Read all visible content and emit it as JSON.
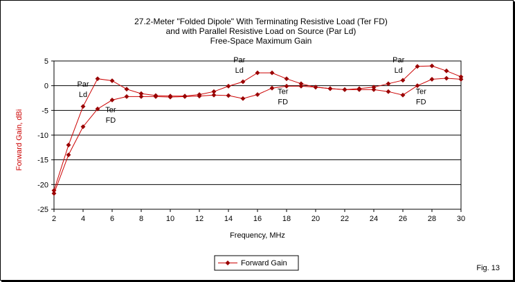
{
  "chart_data": {
    "type": "line",
    "title_lines": [
      "27.2-Meter \"Folded Dipole\" With Terminating Resistive Load (Ter FD)",
      "and with Parallel Resistive Load on Source (Par Ld)",
      "Free-Space Maximum Gain"
    ],
    "xlabel": "Frequency, MHz",
    "ylabel": "Forward Gain, dBi",
    "xlim": [
      2,
      30
    ],
    "ylim": [
      -25,
      5
    ],
    "xticks": [
      2,
      4,
      6,
      8,
      10,
      12,
      14,
      16,
      18,
      20,
      22,
      24,
      26,
      28,
      30
    ],
    "yticks": [
      5,
      0,
      -5,
      -10,
      -15,
      -20,
      -25
    ],
    "grid": "horizontal",
    "legend_position": "bottom-center",
    "legend_label": "Forward Gain",
    "footnote": "Fig. 13",
    "line_color": "#cc0000",
    "marker_color": "#990000",
    "series": [
      {
        "x": [
          2,
          3,
          4,
          5,
          6,
          7,
          8,
          9,
          10,
          11,
          12,
          13,
          14,
          15,
          16,
          17,
          18,
          19,
          20,
          21,
          22,
          23,
          24,
          25,
          26,
          27,
          28,
          29,
          30
        ],
        "y": [
          -21.2,
          -12.0,
          -4.2,
          1.4,
          1.0,
          -0.7,
          -1.6,
          -2.0,
          -2.1,
          -2.1,
          -1.8,
          -1.2,
          -0.1,
          0.8,
          2.6,
          2.6,
          1.4,
          0.4,
          -0.3,
          -0.6,
          -0.8,
          -0.6,
          -0.3,
          0.4,
          1.1,
          3.9,
          4.0,
          3.0,
          1.8
        ]
      },
      {
        "x": [
          2,
          3,
          4,
          5,
          6,
          7,
          8,
          9,
          10,
          11,
          12,
          13,
          14,
          15,
          16,
          17,
          18,
          19,
          20,
          21,
          22,
          23,
          24,
          25,
          26,
          27,
          28,
          29,
          30
        ],
        "y": [
          -21.8,
          -14.0,
          -8.3,
          -4.7,
          -2.9,
          -2.2,
          -2.2,
          -2.2,
          -2.3,
          -2.2,
          -2.1,
          -1.9,
          -2.0,
          -2.6,
          -1.8,
          -0.5,
          -0.1,
          -0.1,
          -0.3,
          -0.6,
          -0.8,
          -0.8,
          -0.8,
          -1.2,
          -1.9,
          0.0,
          1.3,
          1.5,
          1.3
        ]
      }
    ],
    "annotations": [
      {
        "lines": [
          "Par",
          "Ld"
        ],
        "x": 4.0,
        "y": -1.0
      },
      {
        "lines": [
          "Ter",
          "FD"
        ],
        "x": 5.9,
        "y": -6.2
      },
      {
        "lines": [
          "Par",
          "Ld"
        ],
        "x": 14.75,
        "y": 3.9
      },
      {
        "lines": [
          "Ter",
          "FD"
        ],
        "x": 17.75,
        "y": -2.5
      },
      {
        "lines": [
          "Par",
          "Ld"
        ],
        "x": 25.7,
        "y": 3.9
      },
      {
        "lines": [
          "Ter",
          "FD"
        ],
        "x": 27.25,
        "y": -2.5
      }
    ]
  }
}
